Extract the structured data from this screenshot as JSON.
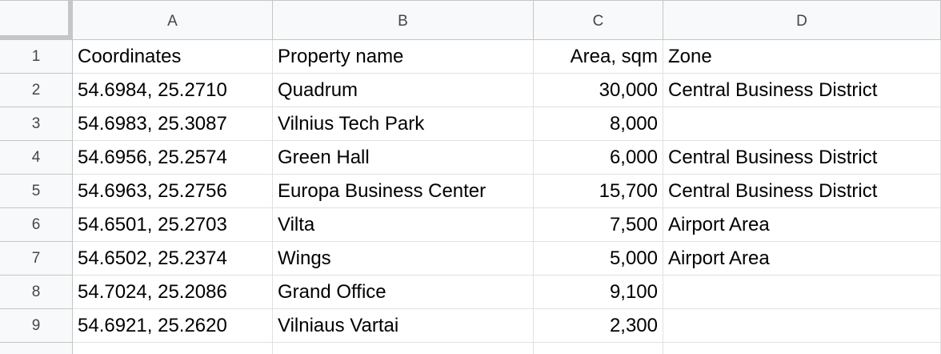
{
  "columns": [
    "A",
    "B",
    "C",
    "D"
  ],
  "rows": [
    {
      "num": "1",
      "cells": [
        "Coordinates",
        "Property name",
        "Area, sqm",
        "Zone"
      ]
    },
    {
      "num": "2",
      "cells": [
        "54.6984, 25.2710",
        "Quadrum",
        "30,000",
        "Central Business District"
      ]
    },
    {
      "num": "3",
      "cells": [
        "54.6983, 25.3087",
        "Vilnius Tech Park",
        "8,000",
        ""
      ]
    },
    {
      "num": "4",
      "cells": [
        "54.6956, 25.2574",
        "Green Hall",
        "6,000",
        "Central Business District"
      ]
    },
    {
      "num": "5",
      "cells": [
        "54.6963, 25.2756",
        "Europa Business Center",
        "15,700",
        "Central Business District"
      ]
    },
    {
      "num": "6",
      "cells": [
        "54.6501, 25.2703",
        "Vilta",
        "7,500",
        "Airport Area"
      ]
    },
    {
      "num": "7",
      "cells": [
        "54.6502, 25.2374",
        "Wings",
        "5,000",
        "Airport Area"
      ]
    },
    {
      "num": "8",
      "cells": [
        "54.7024, 25.2086",
        "Grand Office",
        "9,100",
        ""
      ]
    },
    {
      "num": "9",
      "cells": [
        "54.6921, 25.2620",
        "Vilniaus Vartai",
        "2,300",
        ""
      ]
    }
  ]
}
